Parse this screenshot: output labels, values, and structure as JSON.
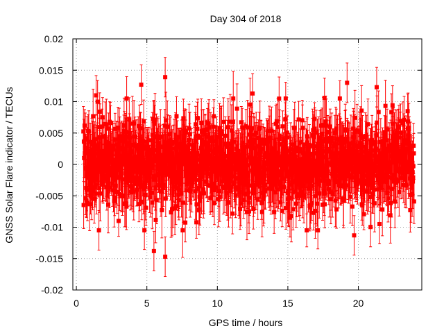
{
  "chart_data": {
    "type": "scatter",
    "title": "Day 304 of 2018",
    "xlabel": "GPS time / hours",
    "ylabel": "GNSS Solar Flare indicator / TECUs",
    "xlim": [
      -0.25,
      24.5
    ],
    "ylim": [
      -0.02,
      0.02
    ],
    "xticks": [
      0,
      5,
      10,
      15,
      20
    ],
    "xtick_labels": [
      "0",
      "5",
      "10",
      "15",
      "20"
    ],
    "yticks": [
      -0.02,
      -0.015,
      -0.01,
      -0.005,
      0,
      0.005,
      0.01,
      0.015,
      0.02
    ],
    "ytick_labels": [
      "-0.02",
      "-0.015",
      "-0.01",
      "-0.005",
      "0",
      "0.005",
      "0.01",
      "0.015",
      "0.02"
    ],
    "grid": true,
    "series": [
      {
        "name": "Solar flare indicator",
        "color": "#ff0000",
        "marker": "square",
        "errorbars": true,
        "x_range": [
          0.5,
          23.95
        ],
        "typical_spread": 0.0035,
        "typical_error": 0.0035,
        "notable_points": [
          {
            "x": 1.4,
            "y": 0.011
          },
          {
            "x": 1.6,
            "y": -0.0105
          },
          {
            "x": 4.6,
            "y": 0.0127
          },
          {
            "x": 5.5,
            "y": -0.0138
          },
          {
            "x": 6.3,
            "y": 0.0139
          },
          {
            "x": 6.3,
            "y": -0.0147
          },
          {
            "x": 12.5,
            "y": 0.0113
          },
          {
            "x": 17.6,
            "y": 0.0106
          },
          {
            "x": 19.2,
            "y": 0.013
          },
          {
            "x": 19.7,
            "y": -0.0113
          },
          {
            "x": 21.3,
            "y": 0.0123
          },
          {
            "x": 21.5,
            "y": -0.0095
          }
        ]
      }
    ]
  }
}
